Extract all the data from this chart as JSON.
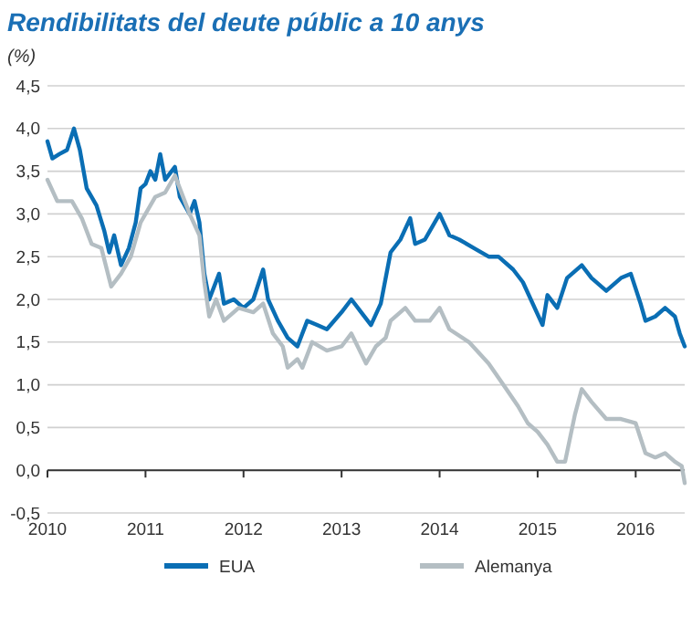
{
  "chart_data": {
    "type": "line",
    "title": "Rendibilitats del deute públic a 10 anys",
    "ylabel": "(%)",
    "xlim": [
      2010,
      2016.5
    ],
    "xticks": [
      2010,
      2011,
      2012,
      2013,
      2014,
      2015,
      2016
    ],
    "ylim": [
      -0.5,
      4.5
    ],
    "yticks": [
      {
        "value": -0.5,
        "label": "-0,5"
      },
      {
        "value": 0,
        "label": "0,0"
      },
      {
        "value": 0.5,
        "label": "0,5"
      },
      {
        "value": 1,
        "label": "1,0"
      },
      {
        "value": 1.5,
        "label": "1,5"
      },
      {
        "value": 2,
        "label": "2,0"
      },
      {
        "value": 2.5,
        "label": "2,5"
      },
      {
        "value": 3,
        "label": "3,0"
      },
      {
        "value": 3.5,
        "label": "3,5"
      },
      {
        "value": 4,
        "label": "4,0"
      },
      {
        "value": 4.5,
        "label": "4,5"
      }
    ],
    "grid": "y",
    "legend": "bottom",
    "line_style": "solid",
    "marker": "none",
    "series": [
      {
        "name": "EUA",
        "color": "#0a6eb4",
        "x": [
          2010,
          2010.05,
          2010.12,
          2010.2,
          2010.27,
          2010.33,
          2010.4,
          2010.5,
          2010.58,
          2010.63,
          2010.68,
          2010.75,
          2010.83,
          2010.9,
          2010.95,
          2011,
          2011.05,
          2011.1,
          2011.15,
          2011.2,
          2011.3,
          2011.35,
          2011.45,
          2011.5,
          2011.55,
          2011.6,
          2011.65,
          2011.75,
          2011.8,
          2011.9,
          2012,
          2012.1,
          2012.2,
          2012.25,
          2012.35,
          2012.45,
          2012.55,
          2012.65,
          2012.75,
          2012.85,
          2013,
          2013.1,
          2013.2,
          2013.3,
          2013.4,
          2013.5,
          2013.6,
          2013.7,
          2013.75,
          2013.85,
          2014,
          2014.1,
          2014.2,
          2014.35,
          2014.5,
          2014.6,
          2014.75,
          2014.85,
          2015.05,
          2015.1,
          2015.2,
          2015.3,
          2015.45,
          2015.55,
          2015.7,
          2015.85,
          2015.95,
          2016.05,
          2016.1,
          2016.2,
          2016.3,
          2016.4,
          2016.45,
          2016.5
        ],
        "values": [
          3.85,
          3.65,
          3.7,
          3.75,
          4.0,
          3.75,
          3.3,
          3.1,
          2.8,
          2.55,
          2.75,
          2.4,
          2.6,
          2.9,
          3.3,
          3.35,
          3.5,
          3.4,
          3.7,
          3.4,
          3.55,
          3.2,
          3.0,
          3.15,
          2.9,
          2.3,
          2.0,
          2.3,
          1.95,
          2.0,
          1.9,
          2.0,
          2.35,
          2.0,
          1.75,
          1.55,
          1.45,
          1.75,
          1.7,
          1.65,
          1.85,
          2.0,
          1.85,
          1.7,
          1.95,
          2.55,
          2.7,
          2.95,
          2.65,
          2.7,
          3.0,
          2.75,
          2.7,
          2.6,
          2.5,
          2.5,
          2.35,
          2.2,
          1.7,
          2.05,
          1.9,
          2.25,
          2.4,
          2.25,
          2.1,
          2.25,
          2.3,
          1.95,
          1.75,
          1.8,
          1.9,
          1.8,
          1.6,
          1.45
        ]
      },
      {
        "name": "Alemanya",
        "color": "#b4bec3",
        "x": [
          2010,
          2010.1,
          2010.25,
          2010.35,
          2010.45,
          2010.55,
          2010.65,
          2010.75,
          2010.85,
          2010.95,
          2011.1,
          2011.2,
          2011.3,
          2011.45,
          2011.55,
          2011.6,
          2011.65,
          2011.72,
          2011.8,
          2011.95,
          2012.1,
          2012.2,
          2012.3,
          2012.4,
          2012.45,
          2012.55,
          2012.6,
          2012.7,
          2012.85,
          2013,
          2013.1,
          2013.25,
          2013.35,
          2013.45,
          2013.5,
          2013.65,
          2013.75,
          2013.9,
          2014,
          2014.1,
          2014.3,
          2014.5,
          2014.65,
          2014.8,
          2014.9,
          2015,
          2015.1,
          2015.2,
          2015.28,
          2015.38,
          2015.45,
          2015.55,
          2015.7,
          2015.85,
          2016,
          2016.1,
          2016.2,
          2016.3,
          2016.4,
          2016.47,
          2016.5
        ],
        "values": [
          3.4,
          3.15,
          3.15,
          2.95,
          2.65,
          2.6,
          2.15,
          2.3,
          2.5,
          2.9,
          3.2,
          3.25,
          3.45,
          3.0,
          2.75,
          2.2,
          1.8,
          2.0,
          1.75,
          1.9,
          1.85,
          1.95,
          1.6,
          1.45,
          1.2,
          1.3,
          1.2,
          1.5,
          1.4,
          1.45,
          1.6,
          1.25,
          1.45,
          1.55,
          1.75,
          1.9,
          1.75,
          1.75,
          1.9,
          1.65,
          1.5,
          1.25,
          1.0,
          0.75,
          0.55,
          0.45,
          0.3,
          0.1,
          0.1,
          0.65,
          0.95,
          0.8,
          0.6,
          0.6,
          0.55,
          0.2,
          0.15,
          0.2,
          0.1,
          0.05,
          -0.15
        ]
      }
    ]
  }
}
